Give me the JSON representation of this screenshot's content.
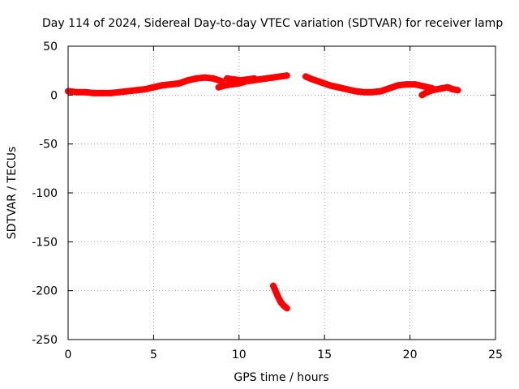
{
  "chart_data": {
    "type": "scatter",
    "title": "Day 114 of 2024, Sidereal Day-to-day VTEC variation (SDTVAR) for receiver lamp",
    "xlabel": "GPS time / hours",
    "ylabel": "SDTVAR / TECUs",
    "xlim": [
      0,
      25
    ],
    "ylim": [
      -250,
      50
    ],
    "xticks": [
      0,
      5,
      10,
      15,
      20,
      25
    ],
    "yticks": [
      -250,
      -200,
      -150,
      -100,
      -50,
      0,
      50
    ],
    "grid": true,
    "marker": "+",
    "color": "#ff0000",
    "series": [
      {
        "name": "SDTVAR",
        "segments": [
          {
            "x": [
              0.0,
              0.5,
              1.0,
              1.5,
              2.0,
              2.5,
              3.0,
              3.5,
              4.0,
              4.5,
              5.0,
              5.5,
              6.0,
              6.5,
              7.0,
              7.5,
              8.0,
              8.5,
              9.0
            ],
            "y": [
              4,
              3,
              3,
              2,
              2,
              2,
              3,
              4,
              5,
              6,
              8,
              10,
              11,
              12,
              15,
              17,
              18,
              17,
              14
            ]
          },
          {
            "x": [
              8.8,
              9.2,
              9.6,
              10.0,
              10.4,
              10.8,
              11.2,
              11.6,
              12.0,
              12.4,
              12.8
            ],
            "y": [
              8,
              10,
              11,
              12,
              14,
              15,
              16,
              17,
              18,
              19,
              20
            ]
          },
          {
            "x": [
              9.3,
              9.7,
              10.1,
              10.5,
              10.9
            ],
            "y": [
              17,
              16,
              15,
              16,
              17
            ]
          },
          {
            "x": [
              12.0,
              12.15,
              12.3,
              12.45,
              12.6,
              12.8
            ],
            "y": [
              -195,
              -201,
              -207,
              -212,
              -215,
              -218
            ]
          },
          {
            "x": [
              13.9,
              14.3,
              14.8,
              15.3,
              15.8,
              16.3,
              16.8,
              17.3,
              17.8,
              18.3,
              18.8,
              19.3,
              19.8,
              20.3,
              20.8,
              21.3
            ],
            "y": [
              19,
              16,
              13,
              10,
              8,
              6,
              4,
              3,
              3,
              4,
              7,
              10,
              11,
              11,
              9,
              7
            ]
          },
          {
            "x": [
              20.7,
              21.0,
              21.3,
              21.6,
              21.9,
              22.2,
              22.5,
              22.8
            ],
            "y": [
              0,
              3,
              5,
              6,
              7,
              8,
              6,
              5
            ]
          }
        ]
      }
    ]
  }
}
